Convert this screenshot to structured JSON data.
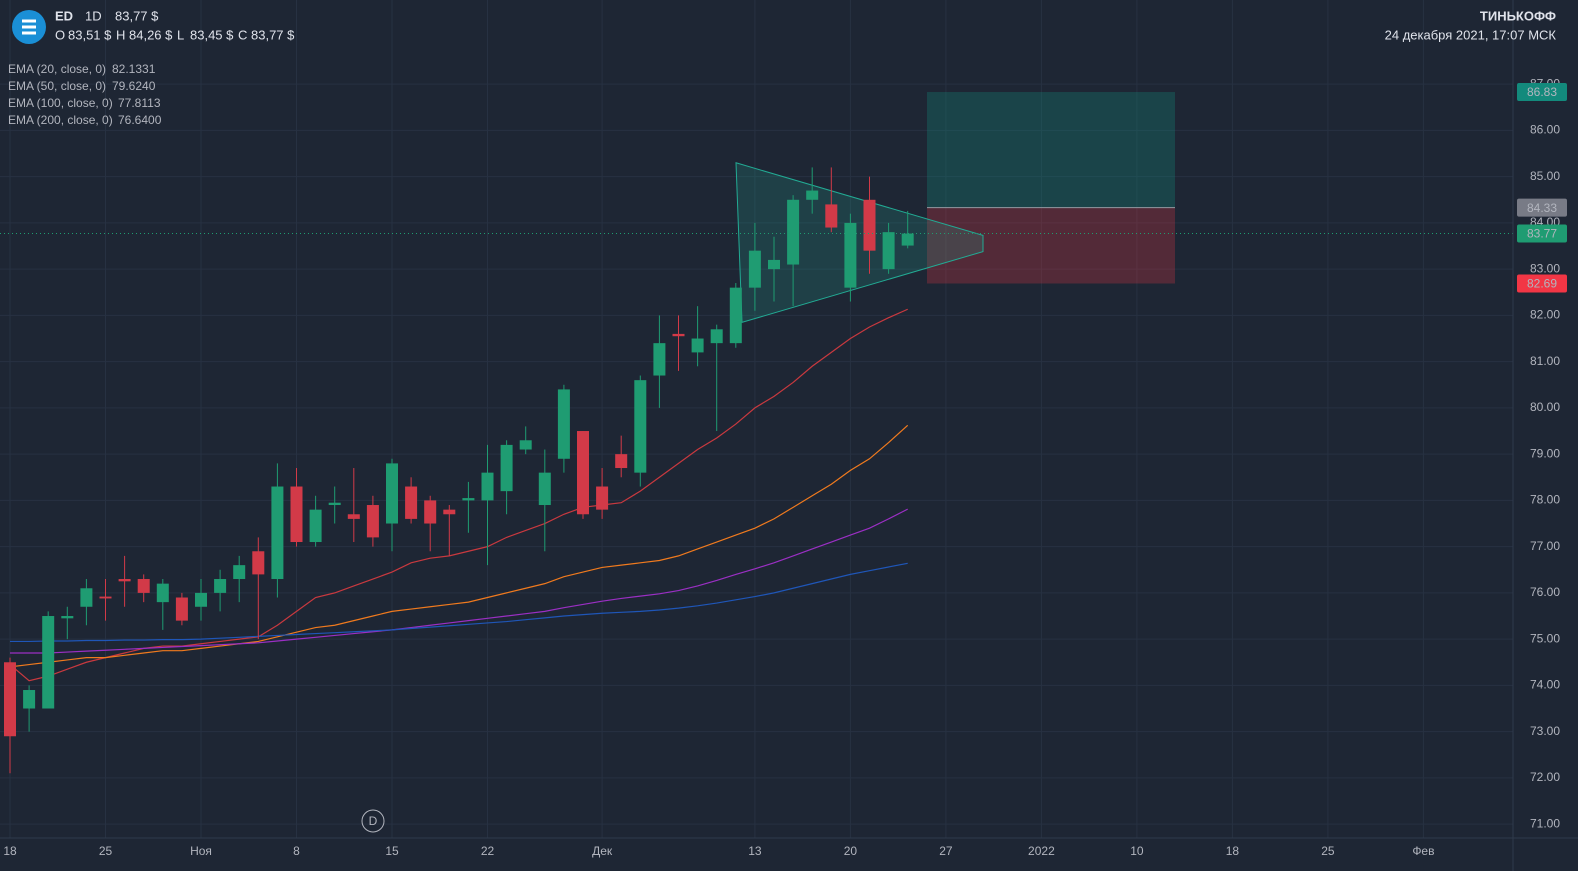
{
  "header": {
    "logo_alt": "ED",
    "symbol": "ED",
    "interval": "1D",
    "price": "83,77 $",
    "ohlc": [
      {
        "key": "O",
        "label": "83,51 $"
      },
      {
        "key": "H",
        "label": "84,26 $"
      },
      {
        "key": "L",
        "label": "83,45 $"
      },
      {
        "key": "C",
        "label": "83,77 $"
      }
    ],
    "brand": "ТИНЬКОФФ",
    "datetime": "24 декабря 2021, 17:07 МСК"
  },
  "markers": {
    "dividend": "D"
  },
  "chart_data": {
    "type": "candlestick",
    "categories": [
      "18",
      null,
      null,
      null,
      null,
      "25",
      null,
      null,
      null,
      null,
      "Ноя",
      null,
      null,
      null,
      null,
      "8",
      null,
      null,
      null,
      null,
      "15",
      null,
      null,
      null,
      null,
      "22",
      null,
      null,
      null,
      null,
      null,
      "Дек",
      null,
      null,
      null,
      null,
      null,
      null,
      null,
      "13",
      null,
      null,
      null,
      null,
      "20",
      null,
      null,
      null,
      null,
      "27",
      null,
      null,
      null,
      null,
      "2022",
      null,
      null,
      null,
      null,
      "10",
      null,
      null,
      null,
      null,
      "18",
      null,
      null,
      null,
      null,
      "25",
      null,
      null,
      null,
      null,
      "Фев",
      null
    ],
    "open": [
      74.5,
      73.5,
      73.5,
      75.45,
      75.7,
      75.92,
      76.3,
      76.3,
      75.8,
      75.9,
      75.7,
      76.0,
      76.3,
      76.9,
      76.3,
      78.3,
      77.1,
      77.9,
      77.7,
      77.9,
      77.5,
      78.3,
      78.0,
      77.8,
      78.0,
      78.0,
      78.2,
      79.1,
      77.9,
      78.9,
      79.5,
      78.3,
      79.0,
      78.6,
      80.7,
      81.6,
      81.2,
      81.4,
      81.4,
      82.6,
      83.0,
      83.1,
      84.5,
      84.4,
      82.6,
      84.5,
      83.0,
      83.51,
      null,
      null,
      null,
      null,
      null,
      null,
      null,
      null,
      null,
      null,
      null,
      null,
      null,
      null,
      null,
      null,
      null,
      null,
      null,
      null,
      null,
      null,
      null,
      null,
      null,
      null,
      null,
      null
    ],
    "high": [
      74.6,
      74.0,
      75.6,
      75.7,
      76.3,
      76.3,
      76.8,
      76.4,
      76.3,
      76.0,
      76.3,
      76.5,
      76.8,
      77.2,
      78.8,
      78.7,
      78.1,
      78.3,
      78.7,
      78.1,
      78.9,
      78.5,
      78.1,
      77.9,
      78.4,
      79.2,
      79.3,
      79.6,
      79.1,
      80.5,
      79.5,
      78.7,
      79.4,
      80.7,
      82.0,
      82.0,
      82.2,
      81.8,
      82.7,
      84.0,
      83.7,
      84.6,
      85.2,
      85.2,
      84.2,
      85.0,
      84.0,
      84.26,
      null,
      null,
      null,
      null,
      null,
      null,
      null,
      null,
      null,
      null,
      null,
      null,
      null,
      null,
      null,
      null,
      null,
      null,
      null,
      null,
      null,
      null,
      null,
      null,
      null,
      null,
      null,
      null
    ],
    "low": [
      72.1,
      73.0,
      73.5,
      75.0,
      75.3,
      75.4,
      75.7,
      75.8,
      75.2,
      75.3,
      75.4,
      75.6,
      75.8,
      75.0,
      75.9,
      77.0,
      77.0,
      77.5,
      77.1,
      77.0,
      76.9,
      77.5,
      76.9,
      76.8,
      77.3,
      76.6,
      77.7,
      79.0,
      76.9,
      78.6,
      77.6,
      77.6,
      78.5,
      78.3,
      80.0,
      80.8,
      80.9,
      79.5,
      81.3,
      82.1,
      82.3,
      82.2,
      84.2,
      83.8,
      82.3,
      82.9,
      82.9,
      83.45,
      null,
      null,
      null,
      null,
      null,
      null,
      null,
      null,
      null,
      null,
      null,
      null,
      null,
      null,
      null,
      null,
      null,
      null,
      null,
      null,
      null,
      null,
      null,
      null,
      null,
      null,
      null,
      null
    ],
    "close": [
      72.9,
      73.9,
      75.5,
      75.5,
      76.1,
      75.88,
      76.25,
      76.0,
      76.2,
      75.4,
      76.0,
      76.3,
      76.6,
      76.4,
      78.3,
      77.1,
      77.8,
      77.95,
      77.6,
      77.2,
      78.8,
      77.6,
      77.5,
      77.7,
      78.05,
      78.6,
      79.2,
      79.3,
      78.6,
      80.4,
      77.7,
      77.8,
      78.7,
      80.6,
      81.4,
      81.55,
      81.5,
      81.7,
      82.6,
      83.4,
      83.2,
      84.5,
      84.7,
      83.9,
      84.0,
      83.4,
      83.8,
      83.77,
      null,
      null,
      null,
      null,
      null,
      null,
      null,
      null,
      null,
      null,
      null,
      null,
      null,
      null,
      null,
      null,
      null,
      null,
      null,
      null,
      null,
      null,
      null,
      null,
      null,
      null,
      null,
      null
    ],
    "up_color": "#1f9c72",
    "down_color": "#d23a48",
    "series": [
      {
        "name": "EMA (20, close, 0)",
        "color": "#c9393f",
        "last_label": "82.1331",
        "values": [
          74.45,
          74.1,
          74.2,
          74.35,
          74.5,
          74.6,
          74.7,
          74.8,
          74.85,
          74.85,
          74.9,
          74.95,
          75.0,
          75.05,
          75.3,
          75.6,
          75.9,
          76.0,
          76.15,
          76.3,
          76.45,
          76.65,
          76.75,
          76.8,
          76.9,
          77.0,
          77.2,
          77.35,
          77.5,
          77.7,
          77.85,
          77.9,
          77.95,
          78.2,
          78.5,
          78.8,
          79.1,
          79.35,
          79.65,
          80.0,
          80.25,
          80.55,
          80.9,
          81.2,
          81.5,
          81.75,
          81.95,
          82.1331,
          null,
          null,
          null,
          null,
          null,
          null,
          null,
          null,
          null,
          null,
          null,
          null,
          null,
          null,
          null,
          null,
          null,
          null,
          null,
          null,
          null,
          null,
          null,
          null,
          null,
          null,
          null,
          null
        ]
      },
      {
        "name": "EMA (50, close, 0)",
        "color": "#f07a1e",
        "last_label": "79.6240",
        "values": [
          74.4,
          74.45,
          74.5,
          74.55,
          74.6,
          74.6,
          74.65,
          74.7,
          74.75,
          74.75,
          74.8,
          74.85,
          74.9,
          74.95,
          75.05,
          75.15,
          75.25,
          75.3,
          75.4,
          75.5,
          75.6,
          75.65,
          75.7,
          75.75,
          75.8,
          75.9,
          76.0,
          76.1,
          76.2,
          76.35,
          76.45,
          76.55,
          76.6,
          76.65,
          76.7,
          76.8,
          76.95,
          77.1,
          77.25,
          77.4,
          77.6,
          77.85,
          78.1,
          78.35,
          78.65,
          78.9,
          79.25,
          79.624,
          null,
          null,
          null,
          null,
          null,
          null,
          null,
          null,
          null,
          null,
          null,
          null,
          null,
          null,
          null,
          null,
          null,
          null,
          null,
          null,
          null,
          null,
          null,
          null,
          null,
          null,
          null,
          null
        ]
      },
      {
        "name": "EMA (100, close, 0)",
        "color": "#9b2fc4",
        "last_label": "77.8113",
        "values": [
          74.7,
          74.7,
          74.7,
          74.72,
          74.74,
          74.76,
          74.78,
          74.8,
          74.82,
          74.84,
          74.86,
          74.88,
          74.9,
          74.92,
          74.96,
          75.0,
          75.04,
          75.08,
          75.12,
          75.16,
          75.2,
          75.25,
          75.3,
          75.35,
          75.4,
          75.45,
          75.5,
          75.55,
          75.6,
          75.68,
          75.75,
          75.82,
          75.88,
          75.93,
          75.98,
          76.05,
          76.15,
          76.27,
          76.4,
          76.52,
          76.65,
          76.8,
          76.95,
          77.1,
          77.25,
          77.4,
          77.6,
          77.8113,
          null,
          null,
          null,
          null,
          null,
          null,
          null,
          null,
          null,
          null,
          null,
          null,
          null,
          null,
          null,
          null,
          null,
          null,
          null,
          null,
          null,
          null,
          null,
          null,
          null,
          null,
          null,
          null
        ]
      },
      {
        "name": "EMA (200, close, 0)",
        "color": "#1f56b8",
        "last_label": "76.6400",
        "values": [
          74.95,
          74.95,
          74.96,
          74.96,
          74.97,
          74.97,
          74.98,
          74.98,
          74.99,
          74.99,
          75.0,
          75.02,
          75.04,
          75.06,
          75.08,
          75.1,
          75.12,
          75.14,
          75.16,
          75.18,
          75.2,
          75.23,
          75.26,
          75.29,
          75.32,
          75.35,
          75.38,
          75.42,
          75.46,
          75.5,
          75.53,
          75.56,
          75.58,
          75.6,
          75.63,
          75.67,
          75.72,
          75.78,
          75.85,
          75.92,
          76.0,
          76.1,
          76.2,
          76.3,
          76.4,
          76.48,
          76.56,
          76.64,
          null,
          null,
          null,
          null,
          null,
          null,
          null,
          null,
          null,
          null,
          null,
          null,
          null,
          null,
          null,
          null,
          null,
          null,
          null,
          null,
          null,
          null,
          null,
          null,
          null,
          null,
          null,
          null
        ]
      }
    ],
    "ylim": [
      70.7,
      88.82
    ],
    "yticks": [
      {
        "value": 71,
        "label": "71.00"
      },
      {
        "value": 72,
        "label": "72.00"
      },
      {
        "value": 73,
        "label": "73.00"
      },
      {
        "value": 74,
        "label": "74.00"
      },
      {
        "value": 75,
        "label": "75.00"
      },
      {
        "value": 76,
        "label": "76.00"
      },
      {
        "value": 77,
        "label": "77.00"
      },
      {
        "value": 78,
        "label": "78.00"
      },
      {
        "value": 79,
        "label": "79.00"
      },
      {
        "value": 80,
        "label": "80.00"
      },
      {
        "value": 81,
        "label": "81.00"
      },
      {
        "value": 82,
        "label": "82.00"
      },
      {
        "value": 83,
        "label": "83.00"
      },
      {
        "value": 84,
        "label": "84.00"
      },
      {
        "value": 85,
        "label": "85.00"
      },
      {
        "value": 86,
        "label": "86.00"
      },
      {
        "value": 87,
        "label": "87.00"
      }
    ],
    "grid": true,
    "current_price": 83.77,
    "current_color": "#1f9c72",
    "position": {
      "entry": 84.33,
      "target": 86.83,
      "stop": 82.69,
      "entry_color": "#787b86",
      "target_color": "#138a7c",
      "stop_color": "#f23645"
    },
    "triangle": [
      85.3,
      83.73,
      83.38,
      81.85
    ]
  }
}
